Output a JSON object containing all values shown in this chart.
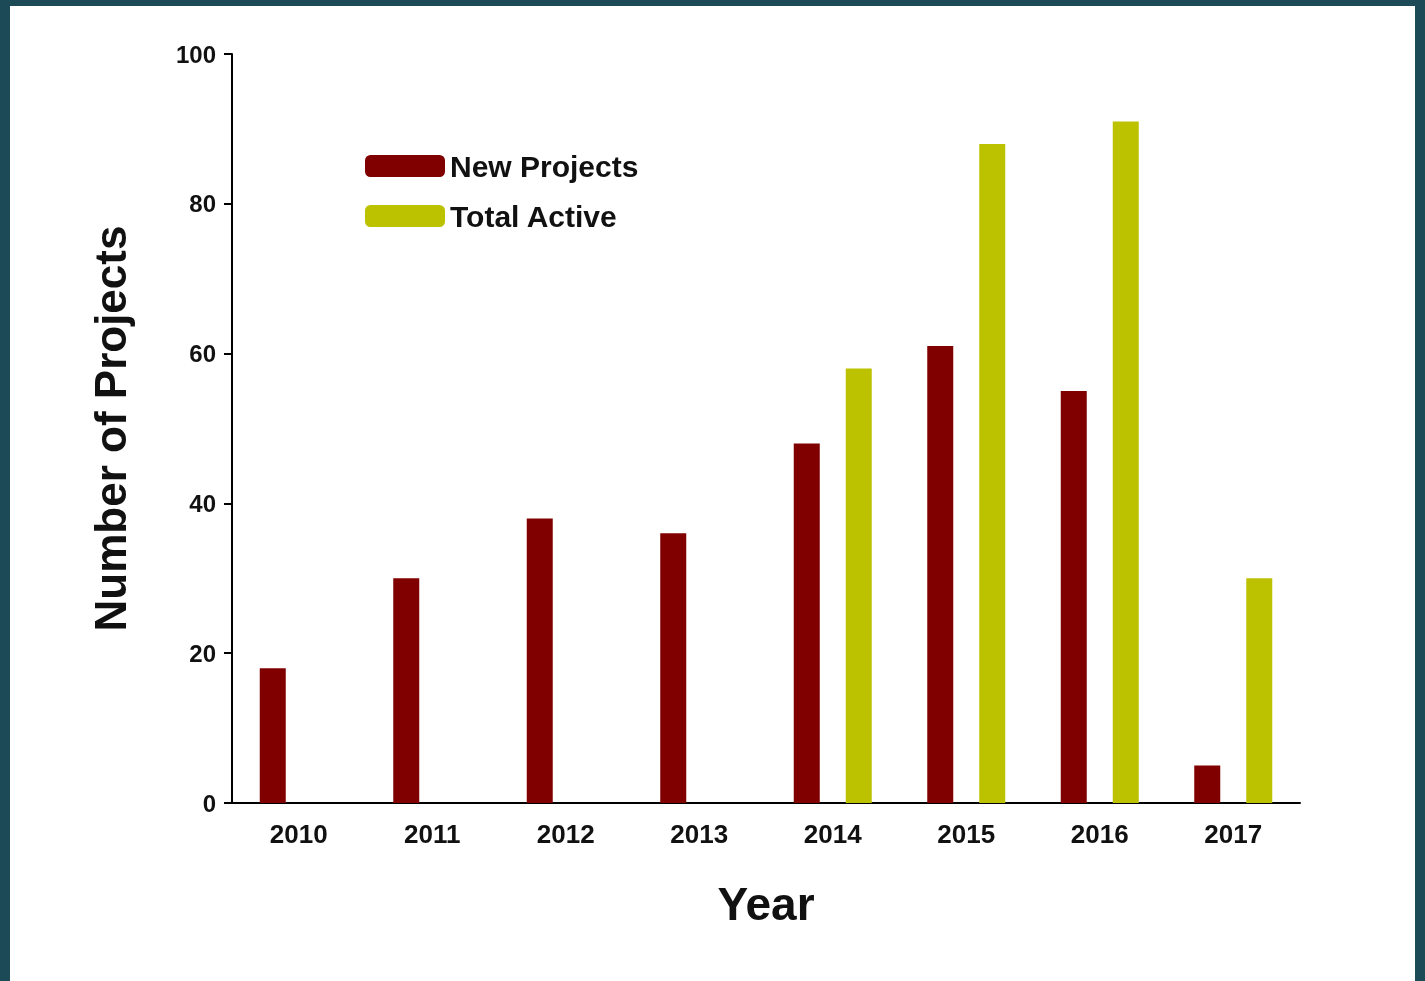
{
  "chart_data": {
    "type": "bar",
    "xlabel": "Year",
    "ylabel": "Number of Projects",
    "categories": [
      "2010",
      "2011",
      "2012",
      "2013",
      "2014",
      "2015",
      "2016",
      "2017"
    ],
    "series": [
      {
        "name": "New Projects",
        "color": "#800000",
        "values": [
          18,
          30,
          38,
          36,
          48,
          61,
          55,
          5
        ]
      },
      {
        "name": "Total Active",
        "color": "#bcc100",
        "values": [
          null,
          null,
          null,
          null,
          58,
          88,
          91,
          30
        ]
      }
    ],
    "ylim": [
      0,
      100
    ],
    "yticks": [
      0,
      20,
      40,
      60,
      80,
      100
    ],
    "grid": false,
    "legend": "top left"
  }
}
